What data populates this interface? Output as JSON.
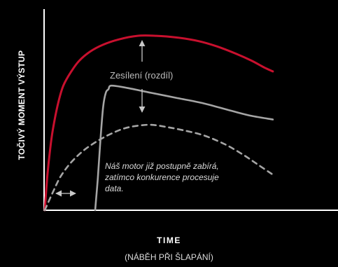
{
  "chart_data": {
    "type": "line",
    "title": "",
    "xlabel": "TIME",
    "xlabel_sub": "(NÁBĚH PŘI ŠLAPÁNÍ)",
    "ylabel": "TOČIVÝ MOMENT VÝSTUP",
    "xlim": [
      0,
      100
    ],
    "ylim": [
      0,
      100
    ],
    "grid": false,
    "legend": "none",
    "series": [
      {
        "key": "boost",
        "color": "#c8102e",
        "style": "solid",
        "points": [
          [
            0,
            0
          ],
          [
            1,
            20
          ],
          [
            2,
            34
          ],
          [
            3,
            45
          ],
          [
            5,
            60
          ],
          [
            7,
            70
          ],
          [
            10,
            78
          ],
          [
            13,
            84
          ],
          [
            17,
            89
          ],
          [
            22,
            93
          ],
          [
            28,
            96
          ],
          [
            35,
            98
          ],
          [
            42,
            98
          ],
          [
            50,
            97
          ],
          [
            58,
            95
          ],
          [
            65,
            92
          ],
          [
            72,
            88
          ],
          [
            78,
            84
          ],
          [
            83,
            80
          ],
          [
            86,
            78
          ]
        ]
      },
      {
        "key": "competitor",
        "color": "#a5a5a5",
        "style": "solid",
        "points": [
          [
            19,
            0
          ],
          [
            20,
            18
          ],
          [
            21,
            40
          ],
          [
            22,
            58
          ],
          [
            23,
            66
          ],
          [
            24,
            68
          ],
          [
            25,
            70
          ],
          [
            30,
            69
          ],
          [
            40,
            66
          ],
          [
            50,
            63
          ],
          [
            60,
            60
          ],
          [
            70,
            56
          ],
          [
            78,
            53
          ],
          [
            86,
            51
          ]
        ]
      },
      {
        "key": "base",
        "color": "#a5a5a5",
        "style": "dashed",
        "points": [
          [
            0,
            0
          ],
          [
            3,
            10
          ],
          [
            6,
            19
          ],
          [
            10,
            27
          ],
          [
            15,
            34
          ],
          [
            20,
            39
          ],
          [
            25,
            43
          ],
          [
            30,
            46
          ],
          [
            35,
            47.5
          ],
          [
            40,
            48
          ],
          [
            45,
            47
          ],
          [
            52,
            45
          ],
          [
            60,
            42
          ],
          [
            68,
            37
          ],
          [
            75,
            31
          ],
          [
            80,
            26
          ],
          [
            86,
            20
          ]
        ]
      }
    ],
    "annotations": {
      "gain": "Zesílení (rozdíl)",
      "note_lines": [
        "Náš motor již postupně zabírá,",
        "zatímco konkurence procesuje",
        "data."
      ]
    }
  }
}
